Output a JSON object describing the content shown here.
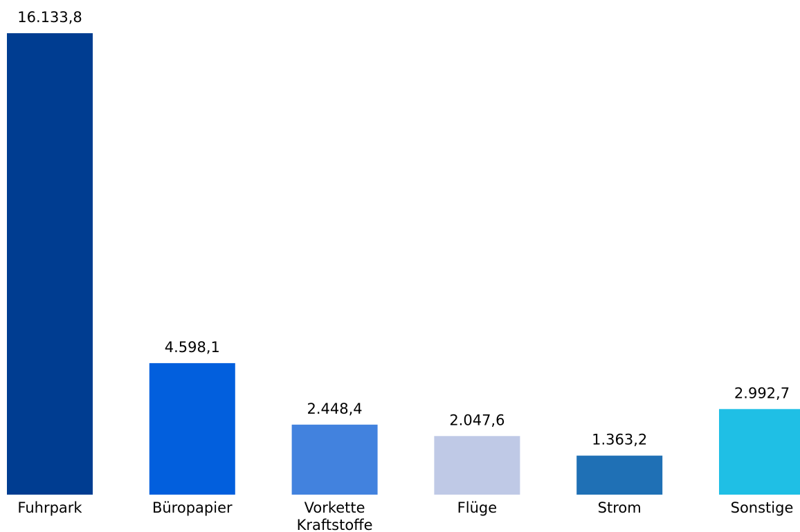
{
  "chart_data": {
    "type": "bar",
    "title": "",
    "xlabel": "",
    "ylabel": "",
    "ylim": [
      0,
      16133.8
    ],
    "grid": false,
    "legend": "none",
    "categories": [
      [
        "Fuhrpark"
      ],
      [
        "Büropapier"
      ],
      [
        "Vorkette",
        "Kraftstoffe"
      ],
      [
        "Flüge"
      ],
      [
        "Strom"
      ],
      [
        "Sonstige"
      ]
    ],
    "values": [
      16133.8,
      4598.1,
      2448.4,
      2047.6,
      1363.2,
      2992.7
    ],
    "value_labels": [
      "16.133,8",
      "4.598,1",
      "2.448,4",
      "2.047,6",
      "1.363,2",
      "2.992,7"
    ],
    "colors": [
      "#003d91",
      "#025fdd",
      "#4282de",
      "#bfc9e6",
      "#1f70b5",
      "#1fbfe5"
    ]
  }
}
